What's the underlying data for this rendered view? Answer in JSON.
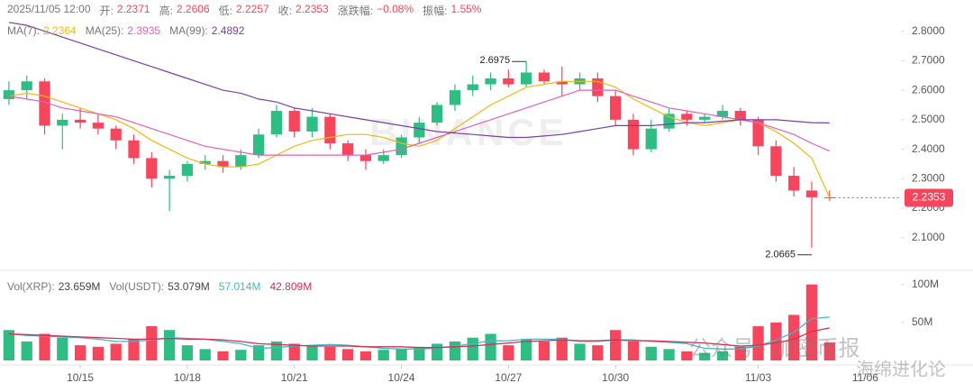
{
  "chart_data": [
    {
      "type": "candlestick",
      "header": {
        "datetime": "2025/11/05 12:00",
        "open_label": "开:",
        "high_label": "高:",
        "low_label": "低:",
        "close_label": "收:",
        "change_label": "涨跌幅:",
        "change": "−0.08%",
        "amplitude_label": "振幅:",
        "amplitude": "1.55%"
      },
      "open": [
        2.57,
        2.6,
        2.63,
        2.48,
        2.5,
        2.49,
        2.47,
        2.43,
        2.37,
        2.3,
        2.31,
        2.35,
        2.36,
        2.34,
        2.38,
        2.45,
        2.53,
        2.46,
        2.51,
        2.42,
        2.38,
        2.36,
        2.38,
        2.44,
        2.49,
        2.55,
        2.6,
        2.62,
        2.64,
        2.62,
        2.66,
        2.63,
        2.62,
        2.64,
        2.58,
        2.5,
        2.4,
        2.47,
        2.52,
        2.5,
        2.51,
        2.53,
        2.5,
        2.41,
        2.31,
        2.26,
        2.2371
      ],
      "high": [
        2.63,
        2.65,
        2.64,
        2.52,
        2.54,
        2.52,
        2.48,
        2.45,
        2.39,
        2.33,
        2.36,
        2.38,
        2.38,
        2.4,
        2.47,
        2.55,
        2.54,
        2.54,
        2.52,
        2.43,
        2.4,
        2.4,
        2.45,
        2.51,
        2.56,
        2.62,
        2.65,
        2.66,
        2.67,
        2.6975,
        2.67,
        2.68,
        2.66,
        2.66,
        2.6,
        2.52,
        2.5,
        2.54,
        2.53,
        2.52,
        2.55,
        2.54,
        2.51,
        2.43,
        2.34,
        2.29,
        2.2606
      ],
      "low": [
        2.55,
        2.57,
        2.45,
        2.4,
        2.47,
        2.45,
        2.4,
        2.35,
        2.27,
        2.19,
        2.29,
        2.33,
        2.32,
        2.33,
        2.37,
        2.44,
        2.44,
        2.44,
        2.4,
        2.36,
        2.33,
        2.35,
        2.37,
        2.42,
        2.48,
        2.53,
        2.58,
        2.6,
        2.61,
        2.61,
        2.62,
        2.58,
        2.6,
        2.56,
        2.48,
        2.38,
        2.39,
        2.46,
        2.48,
        2.49,
        2.5,
        2.48,
        2.38,
        2.29,
        2.24,
        2.0665,
        2.2257
      ],
      "close": [
        2.6,
        2.63,
        2.48,
        2.5,
        2.49,
        2.47,
        2.43,
        2.37,
        2.3,
        2.31,
        2.35,
        2.36,
        2.34,
        2.38,
        2.45,
        2.53,
        2.46,
        2.51,
        2.42,
        2.38,
        2.36,
        2.38,
        2.44,
        2.49,
        2.55,
        2.6,
        2.62,
        2.64,
        2.62,
        2.66,
        2.63,
        2.62,
        2.64,
        2.58,
        2.5,
        2.4,
        2.47,
        2.52,
        2.5,
        2.51,
        2.53,
        2.5,
        2.41,
        2.31,
        2.26,
        2.2371,
        2.2353
      ],
      "series": [
        {
          "name": "MA(7):",
          "color": "#f0b90b",
          "values": [
            2.58,
            2.59,
            2.58,
            2.56,
            2.54,
            2.52,
            2.5,
            2.47,
            2.43,
            2.4,
            2.37,
            2.35,
            2.34,
            2.34,
            2.35,
            2.38,
            2.41,
            2.43,
            2.44,
            2.45,
            2.45,
            2.44,
            2.42,
            2.41,
            2.43,
            2.47,
            2.51,
            2.55,
            2.58,
            2.61,
            2.62,
            2.63,
            2.63,
            2.63,
            2.61,
            2.57,
            2.54,
            2.51,
            2.49,
            2.48,
            2.49,
            2.5,
            2.49,
            2.46,
            2.42,
            2.37,
            2.2364
          ]
        },
        {
          "name": "MA(25):",
          "color": "#e35fbf",
          "values": [
            2.58,
            2.57,
            2.56,
            2.54,
            2.53,
            2.52,
            2.51,
            2.49,
            2.47,
            2.45,
            2.43,
            2.41,
            2.4,
            2.39,
            2.38,
            2.38,
            2.38,
            2.38,
            2.38,
            2.38,
            2.38,
            2.39,
            2.4,
            2.42,
            2.44,
            2.46,
            2.48,
            2.5,
            2.52,
            2.54,
            2.56,
            2.58,
            2.6,
            2.6,
            2.6,
            2.58,
            2.56,
            2.54,
            2.53,
            2.52,
            2.51,
            2.5,
            2.49,
            2.47,
            2.45,
            2.42,
            2.3935
          ]
        },
        {
          "name": "MA(99):",
          "color": "#7a3fa6",
          "values": [
            2.83,
            2.82,
            2.8,
            2.78,
            2.76,
            2.74,
            2.72,
            2.7,
            2.68,
            2.66,
            2.64,
            2.62,
            2.6,
            2.59,
            2.57,
            2.56,
            2.54,
            2.53,
            2.52,
            2.51,
            2.5,
            2.49,
            2.48,
            2.47,
            2.46,
            2.455,
            2.45,
            2.445,
            2.44,
            2.44,
            2.445,
            2.45,
            2.46,
            2.47,
            2.48,
            2.48,
            2.48,
            2.485,
            2.49,
            2.49,
            2.495,
            2.5,
            2.5,
            2.5,
            2.495,
            2.49,
            2.4892
          ]
        }
      ],
      "up_color": "#2ebd85",
      "down_color": "#f6465d",
      "xlim": [
        -0.5,
        50
      ],
      "ylim": [
        2.02,
        2.86
      ],
      "yticks": [
        {
          "value": 2.1,
          "label": "2.1000"
        },
        {
          "value": 2.2,
          "label": "2.2000"
        },
        {
          "value": 2.3,
          "label": "2.3000"
        },
        {
          "value": 2.4,
          "label": "2.4000"
        },
        {
          "value": 2.5,
          "label": "2.5000"
        },
        {
          "value": 2.6,
          "label": "2.6000"
        },
        {
          "value": 2.7,
          "label": "2.7000"
        },
        {
          "value": 2.8,
          "label": "2.8000"
        }
      ],
      "grid": false,
      "watermark": "BINANCE"
    },
    {
      "type": "bar",
      "header": [
        {
          "label": "Vol(XRP):",
          "text": "23.659M",
          "color": "#444"
        },
        {
          "label": "Vol(USDT):",
          "text": "53.079M",
          "color": "#444"
        },
        {
          "text": "57.014M",
          "color": "#45b6c9"
        },
        {
          "text": "42.809M",
          "color": "#d6304f"
        }
      ],
      "values": [
        40,
        25,
        35,
        30,
        20,
        18,
        22,
        28,
        45,
        40,
        20,
        15,
        12,
        14,
        20,
        25,
        22,
        20,
        18,
        15,
        12,
        14,
        15,
        18,
        22,
        25,
        30,
        35,
        20,
        28,
        25,
        30,
        22,
        20,
        40,
        25,
        18,
        15,
        12,
        10,
        12,
        18,
        45,
        50,
        60,
        100,
        23.659
      ],
      "series": [
        {
          "color": "#45b6c9",
          "values": [
            35,
            33,
            32,
            31,
            30,
            28,
            25,
            25,
            27,
            30,
            29,
            28,
            25,
            22,
            16,
            17,
            19,
            20,
            21,
            20,
            18,
            16,
            15,
            15,
            16,
            19,
            22,
            26,
            26,
            28,
            28,
            28,
            25,
            25,
            27,
            27,
            25,
            24,
            22,
            16,
            15,
            15,
            19,
            27,
            37,
            55,
            57.014
          ]
        },
        {
          "color": "#d6304f",
          "values": [
            35,
            34,
            33,
            32,
            31,
            30,
            29,
            28,
            28,
            29,
            28,
            28,
            27,
            25,
            22,
            21,
            20,
            19,
            19,
            19,
            18,
            18,
            18,
            17,
            17,
            18,
            19,
            21,
            23,
            25,
            26,
            27,
            26,
            26,
            27,
            26,
            26,
            25,
            24,
            23,
            21,
            19,
            20,
            23,
            28,
            38,
            42.809
          ]
        }
      ],
      "xlim": [
        -0.5,
        50
      ],
      "xticks": [
        {
          "value": 4,
          "label": "10/15"
        },
        {
          "value": 10,
          "label": "10/18"
        },
        {
          "value": 16,
          "label": "10/21"
        },
        {
          "value": 22,
          "label": "10/24"
        },
        {
          "value": 28,
          "label": "10/27"
        },
        {
          "value": 34,
          "label": "10/30"
        },
        {
          "value": 42,
          "label": "11/03"
        },
        {
          "value": 48,
          "label": "11/06"
        }
      ],
      "ylim": [
        0,
        115
      ],
      "yticks": [
        {
          "value": 50,
          "label": "50M"
        },
        {
          "value": 100,
          "label": "100M"
        }
      ]
    }
  ],
  "overlay": {
    "line1": "公众号 · 加密币报",
    "line2": "海绵进化论"
  }
}
